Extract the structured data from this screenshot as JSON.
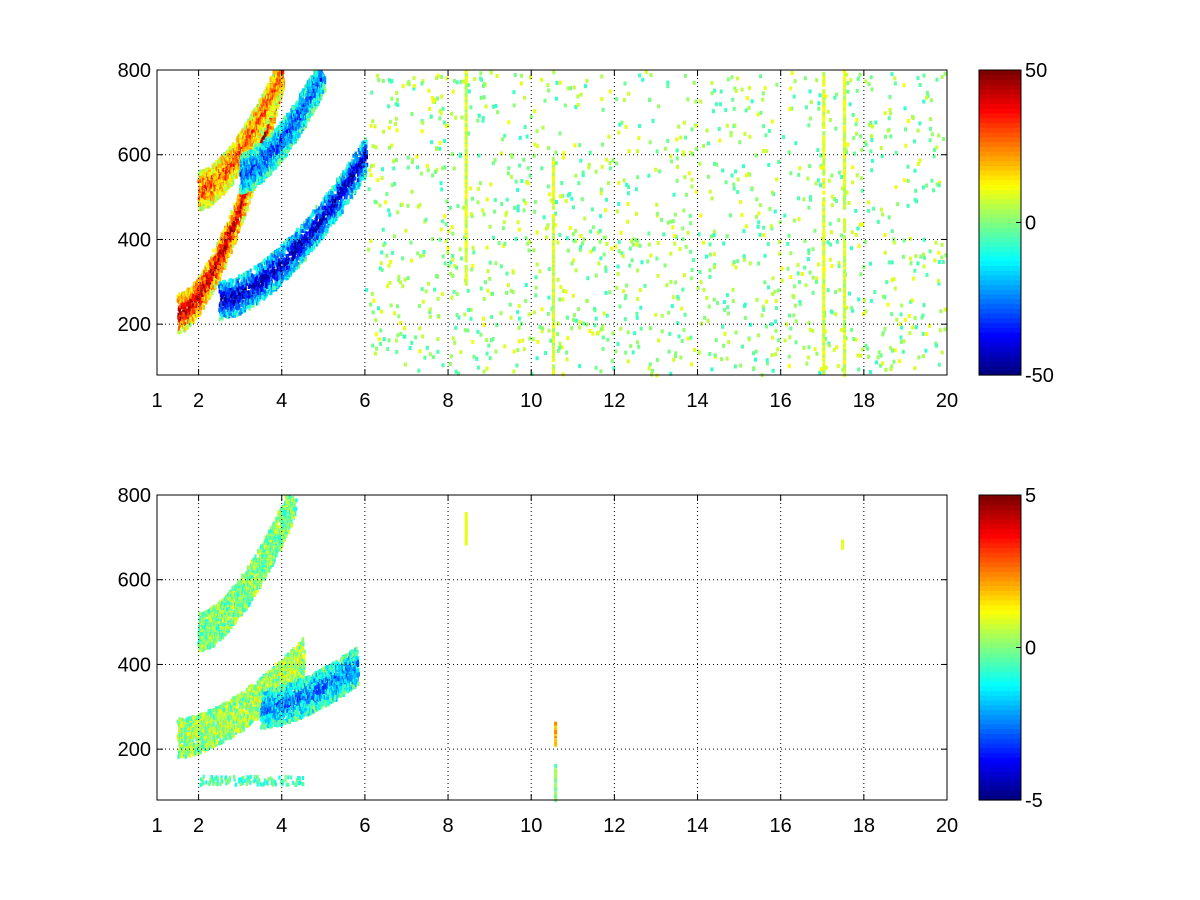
{
  "chart_data": [
    {
      "type": "heatmap",
      "title": "",
      "xlabel": "",
      "ylabel": "",
      "xlim": [
        1,
        20
      ],
      "ylim": [
        80,
        800
      ],
      "grid": true,
      "grid_style": "dotted",
      "colormap": "jet",
      "colorbar": {
        "ticks": [
          -50,
          0,
          50
        ],
        "tick_labels": [
          "-50",
          "0",
          "50"
        ],
        "clim": [
          -50,
          50
        ]
      },
      "x_tick_labels": [
        "1",
        "2",
        "4",
        "6",
        "8",
        "10",
        "12",
        "14",
        "16",
        "18",
        "20"
      ],
      "x_ticks": [
        1,
        2,
        4,
        6,
        8,
        10,
        12,
        14,
        16,
        18,
        20
      ],
      "y_tick_labels": [
        "200",
        "400",
        "600",
        "800"
      ],
      "y_ticks": [
        200,
        400,
        600,
        800
      ],
      "features": [
        {
          "kind": "ridge",
          "description": "strong positive band",
          "x_range": [
            1.5,
            4.0
          ],
          "y_start": 230,
          "y_end": 800,
          "value": 45
        },
        {
          "kind": "ridge",
          "description": "strong negative band",
          "x_range": [
            2.5,
            6.0
          ],
          "y_start": 260,
          "y_end": 600,
          "value": -45
        },
        {
          "kind": "ridge",
          "description": "positive upper band",
          "x_range": [
            2.0,
            4.0
          ],
          "y_start": 520,
          "y_end": 800,
          "value": 30
        },
        {
          "kind": "ridge",
          "description": "negative upper band",
          "x_range": [
            3.0,
            5.0
          ],
          "y_start": 560,
          "y_end": 800,
          "value": -30
        },
        {
          "kind": "speckle",
          "description": "sparse low-amplitude noise",
          "x_range": [
            6,
            20
          ],
          "y_range": [
            80,
            800
          ],
          "value_range": [
            -8,
            12
          ]
        },
        {
          "kind": "stripe",
          "x": 10.5,
          "y_range": [
            80,
            600
          ],
          "value": 8
        },
        {
          "kind": "stripe",
          "x": 17.0,
          "y_range": [
            80,
            800
          ],
          "value": 8
        },
        {
          "kind": "stripe",
          "x": 17.5,
          "y_range": [
            80,
            800
          ],
          "value": 8
        },
        {
          "kind": "stripe",
          "x": 8.4,
          "y_range": [
            300,
            800
          ],
          "value": 8
        }
      ]
    },
    {
      "type": "heatmap",
      "title": "",
      "xlabel": "",
      "ylabel": "",
      "xlim": [
        1,
        20
      ],
      "ylim": [
        80,
        800
      ],
      "grid": true,
      "grid_style": "dotted",
      "colormap": "jet",
      "colorbar": {
        "ticks": [
          -5,
          0,
          5
        ],
        "tick_labels": [
          "-5",
          "0",
          "5"
        ],
        "clim": [
          -5,
          5
        ]
      },
      "x_tick_labels": [
        "1",
        "2",
        "4",
        "6",
        "8",
        "10",
        "12",
        "14",
        "16",
        "18",
        "20"
      ],
      "x_ticks": [
        1,
        2,
        4,
        6,
        8,
        10,
        12,
        14,
        16,
        18,
        20
      ],
      "y_tick_labels": [
        "200",
        "400",
        "600",
        "800"
      ],
      "y_ticks": [
        200,
        400,
        600,
        800
      ],
      "features": [
        {
          "kind": "ridge",
          "description": "low-amplitude lower band",
          "x_range": [
            1.5,
            4.5
          ],
          "y_start": 230,
          "y_end": 420,
          "value": 0.5
        },
        {
          "kind": "ridge",
          "description": "low-amplitude upper band",
          "x_range": [
            2.0,
            4.3
          ],
          "y_start": 480,
          "y_end": 800,
          "value": 0
        },
        {
          "kind": "ridge",
          "description": "negative edge",
          "x_range": [
            3.5,
            5.8
          ],
          "y_start": 300,
          "y_end": 400,
          "value": -2.5
        },
        {
          "kind": "band",
          "description": "thin low band",
          "x_range": [
            2.0,
            4.5
          ],
          "y": 130,
          "value": -0.5
        },
        {
          "kind": "stripe",
          "x": 10.55,
          "y_range": [
            215,
            265
          ],
          "value": 2
        },
        {
          "kind": "stripe",
          "x": 10.55,
          "y_range": [
            80,
            165
          ],
          "value": 0
        },
        {
          "kind": "speckle",
          "x": 8.4,
          "y_range": [
            690,
            760
          ],
          "value": 1
        },
        {
          "kind": "speckle",
          "x": 17.45,
          "y_range": [
            680,
            695
          ],
          "value": 1
        }
      ]
    }
  ]
}
